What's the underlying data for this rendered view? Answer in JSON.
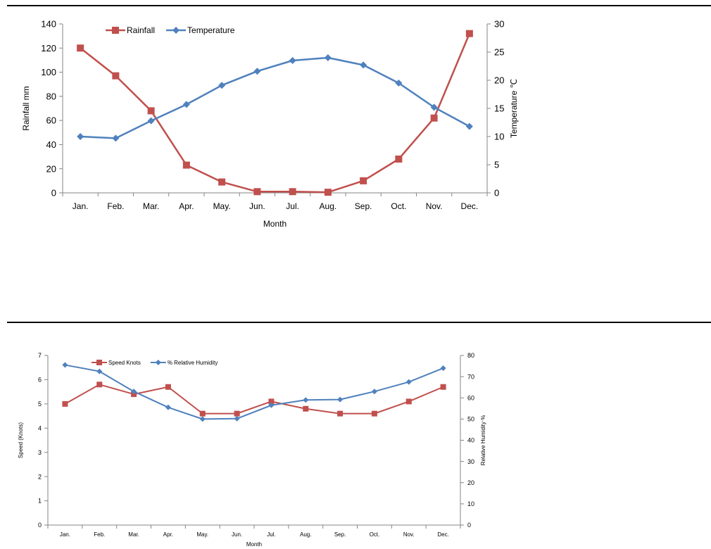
{
  "chart_data": [
    {
      "type": "line",
      "categories": [
        "Jan.",
        "Feb.",
        "Mar.",
        "Apr.",
        "May.",
        "Jun.",
        "Jul.",
        "Aug.",
        "Sep.",
        "Oct.",
        "Nov.",
        "Dec."
      ],
      "series": [
        {
          "name": "Rainfall",
          "axis": "left",
          "marker": "square",
          "color": "#C0504D",
          "values": [
            120,
            97,
            68,
            23,
            9,
            1,
            1,
            0.5,
            10,
            28,
            62,
            132
          ]
        },
        {
          "name": "Temperature",
          "axis": "right",
          "marker": "diamond",
          "color": "#4F81BD",
          "values": [
            10,
            9.7,
            12.8,
            15.7,
            19.1,
            21.6,
            23.5,
            24,
            22.7,
            19.5,
            15.2,
            11.8
          ]
        }
      ],
      "xlabel": "Month",
      "ylabel": "Rainfall mm",
      "y2label": "Temperature ℃",
      "ylim": [
        0,
        140
      ],
      "yticks": [
        0,
        20,
        40,
        60,
        80,
        100,
        120,
        140
      ],
      "y2lim": [
        0,
        30
      ],
      "y2ticks": [
        0,
        5,
        10,
        15,
        20,
        25,
        30
      ],
      "legend": "top-left",
      "grid": false
    },
    {
      "type": "line",
      "categories": [
        "Jan.",
        "Feb.",
        "Mar.",
        "Apr.",
        "May.",
        "Jun.",
        "Jul.",
        "Aug.",
        "Sep.",
        "Oct.",
        "Nov.",
        "Dec."
      ],
      "series": [
        {
          "name": "Speed Knots",
          "axis": "left",
          "marker": "square",
          "color": "#C0504D",
          "values": [
            5.0,
            5.8,
            5.4,
            5.7,
            4.6,
            4.6,
            5.1,
            4.8,
            4.6,
            4.6,
            5.1,
            5.7
          ]
        },
        {
          "name": "% Relative Humidity",
          "axis": "right",
          "marker": "diamond",
          "color": "#4F81BD",
          "values": [
            75.5,
            72.5,
            63,
            55.5,
            50,
            50.2,
            56.5,
            59,
            59.2,
            63,
            67.5,
            74
          ]
        }
      ],
      "xlabel": "Month",
      "ylabel": "Speed (Knots)",
      "y2label": "Relative Humidity %",
      "ylim": [
        0,
        7
      ],
      "yticks": [
        0,
        1,
        2,
        3,
        4,
        5,
        6,
        7
      ],
      "y2lim": [
        0,
        80
      ],
      "y2ticks": [
        0,
        10,
        20,
        30,
        40,
        50,
        60,
        70,
        80
      ],
      "legend": "top-left",
      "grid": false
    }
  ]
}
